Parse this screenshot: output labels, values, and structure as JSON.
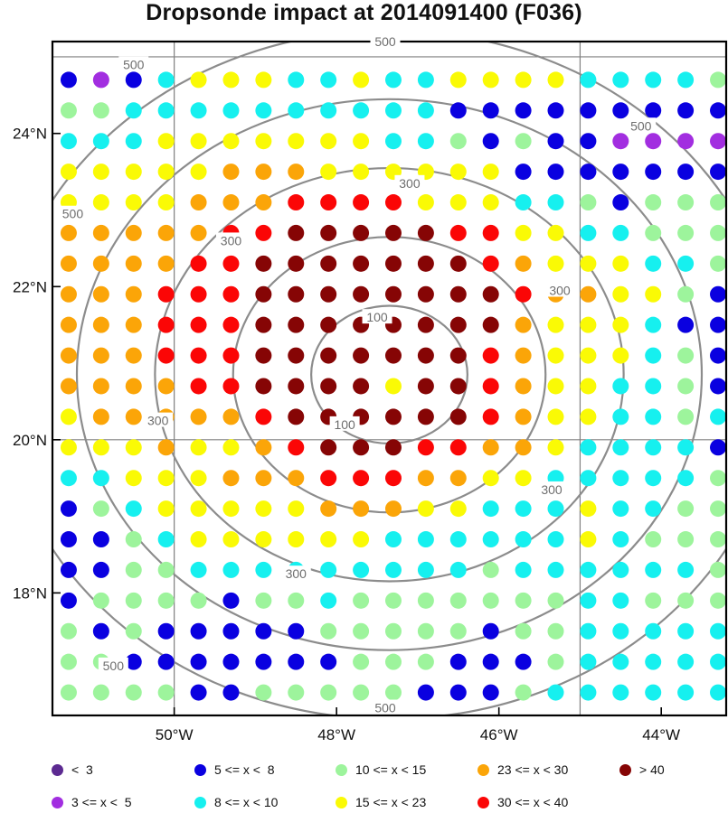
{
  "chart_data": {
    "type": "scatter",
    "title": "Dropsonde impact at 2014091400 (F036)",
    "x_range_lon": [
      -51.5,
      -43.2
    ],
    "y_range_lat": [
      16.4,
      25.2
    ],
    "x_ticks": [
      {
        "lon": -50,
        "label": "50°W"
      },
      {
        "lon": -48,
        "label": "48°W"
      },
      {
        "lon": -46,
        "label": "46°W"
      },
      {
        "lon": -44,
        "label": "44°W"
      }
    ],
    "y_ticks": [
      {
        "lat": 24,
        "label": "24°N"
      },
      {
        "lat": 22,
        "label": "22°N"
      },
      {
        "lat": 20,
        "label": "20°N"
      },
      {
        "lat": 18,
        "label": "18°N"
      }
    ],
    "grid_lines_lon": [
      -50,
      -45
    ],
    "grid_lines_lat": [
      25,
      20
    ],
    "grid": true,
    "point_lons": [
      -51.3,
      -50.9,
      -50.5,
      -50.1,
      -49.7,
      -49.3,
      -48.9,
      -48.5,
      -48.1,
      -47.7,
      -47.3,
      -46.9,
      -46.5,
      -46.1,
      -45.7,
      -45.3,
      -44.9,
      -44.5,
      -44.1,
      -43.7,
      -43.3
    ],
    "point_lats": [
      24.7,
      24.3,
      23.9,
      23.5,
      23.1,
      22.7,
      22.3,
      21.9,
      21.5,
      21.1,
      20.7,
      20.3,
      19.9,
      19.5,
      19.1,
      18.7,
      18.3,
      17.9,
      17.5,
      17.1,
      16.7
    ],
    "category_grid": [
      [
        2,
        1,
        2,
        3,
        5,
        5,
        5,
        3,
        3,
        5,
        3,
        3,
        5,
        5,
        5,
        5,
        3,
        3,
        3,
        3,
        4
      ],
      [
        4,
        4,
        3,
        3,
        3,
        3,
        3,
        3,
        3,
        3,
        3,
        3,
        2,
        2,
        2,
        2,
        2,
        2,
        2,
        2,
        2
      ],
      [
        3,
        3,
        3,
        5,
        5,
        5,
        5,
        5,
        5,
        5,
        3,
        3,
        4,
        2,
        4,
        2,
        2,
        1,
        1,
        1,
        1
      ],
      [
        5,
        5,
        5,
        5,
        5,
        6,
        6,
        6,
        5,
        5,
        5,
        5,
        5,
        5,
        2,
        2,
        2,
        2,
        2,
        2,
        2
      ],
      [
        5,
        5,
        5,
        5,
        6,
        6,
        6,
        7,
        7,
        7,
        7,
        5,
        5,
        5,
        3,
        3,
        4,
        2,
        4,
        4,
        4
      ],
      [
        6,
        6,
        6,
        6,
        6,
        7,
        7,
        8,
        8,
        8,
        8,
        8,
        7,
        7,
        5,
        5,
        3,
        3,
        4,
        4,
        4
      ],
      [
        6,
        6,
        6,
        6,
        7,
        7,
        8,
        8,
        8,
        8,
        8,
        8,
        8,
        7,
        6,
        5,
        5,
        5,
        3,
        3,
        4
      ],
      [
        6,
        6,
        6,
        7,
        7,
        7,
        8,
        8,
        8,
        8,
        8,
        8,
        8,
        8,
        7,
        6,
        6,
        5,
        5,
        4,
        2
      ],
      [
        6,
        6,
        6,
        7,
        7,
        7,
        8,
        8,
        8,
        8,
        8,
        8,
        8,
        8,
        6,
        5,
        5,
        5,
        3,
        2,
        2
      ],
      [
        6,
        6,
        6,
        7,
        7,
        7,
        8,
        8,
        8,
        8,
        8,
        8,
        8,
        7,
        6,
        5,
        5,
        5,
        3,
        4,
        2
      ],
      [
        6,
        6,
        6,
        6,
        7,
        7,
        8,
        8,
        8,
        8,
        5,
        8,
        8,
        7,
        6,
        5,
        5,
        3,
        3,
        4,
        2
      ],
      [
        5,
        6,
        6,
        6,
        6,
        6,
        7,
        8,
        8,
        8,
        8,
        8,
        8,
        7,
        6,
        5,
        5,
        3,
        3,
        4,
        3
      ],
      [
        5,
        5,
        5,
        6,
        5,
        5,
        6,
        7,
        8,
        8,
        8,
        7,
        7,
        6,
        6,
        5,
        3,
        3,
        3,
        3,
        2
      ],
      [
        3,
        3,
        5,
        5,
        5,
        6,
        6,
        6,
        7,
        7,
        7,
        6,
        6,
        5,
        5,
        3,
        3,
        3,
        3,
        3,
        4
      ],
      [
        2,
        4,
        3,
        5,
        5,
        5,
        5,
        5,
        6,
        6,
        6,
        5,
        5,
        3,
        3,
        3,
        5,
        3,
        3,
        4,
        4
      ],
      [
        2,
        2,
        4,
        3,
        5,
        5,
        5,
        5,
        5,
        5,
        3,
        3,
        3,
        3,
        3,
        3,
        5,
        3,
        4,
        4,
        4
      ],
      [
        2,
        2,
        4,
        4,
        3,
        3,
        3,
        3,
        3,
        3,
        3,
        3,
        3,
        4,
        3,
        3,
        3,
        3,
        3,
        3,
        4
      ],
      [
        2,
        4,
        4,
        4,
        4,
        2,
        4,
        4,
        3,
        4,
        4,
        4,
        4,
        4,
        4,
        4,
        3,
        3,
        4,
        4,
        4
      ],
      [
        4,
        2,
        4,
        2,
        2,
        2,
        2,
        2,
        4,
        4,
        4,
        4,
        4,
        2,
        4,
        4,
        3,
        3,
        3,
        3,
        3
      ],
      [
        4,
        4,
        2,
        2,
        2,
        2,
        2,
        2,
        2,
        4,
        4,
        4,
        2,
        2,
        2,
        4,
        3,
        3,
        3,
        3,
        3
      ],
      [
        4,
        4,
        4,
        4,
        2,
        2,
        4,
        4,
        4,
        4,
        4,
        2,
        2,
        2,
        4,
        3,
        3,
        3,
        3,
        3,
        3
      ]
    ],
    "contours": {
      "center": [
        -47.35,
        20.85
      ],
      "units": "km",
      "levels": [
        100,
        200,
        300,
        400,
        500
      ],
      "labels": [
        {
          "text": "100",
          "lon": -47.5,
          "lat": 21.6
        },
        {
          "text": "100",
          "lon": -47.9,
          "lat": 20.2
        },
        {
          "text": "300",
          "lon": -47.1,
          "lat": 23.35
        },
        {
          "text": "300",
          "lon": -49.3,
          "lat": 22.6
        },
        {
          "text": "300",
          "lon": -45.25,
          "lat": 21.95
        },
        {
          "text": "300",
          "lon": -50.2,
          "lat": 20.25
        },
        {
          "text": "300",
          "lon": -45.35,
          "lat": 19.35
        },
        {
          "text": "300",
          "lon": -48.5,
          "lat": 18.25
        },
        {
          "text": "500",
          "lon": -47.4,
          "lat": 25.2
        },
        {
          "text": "500",
          "lon": -50.5,
          "lat": 24.9
        },
        {
          "text": "500",
          "lon": -44.25,
          "lat": 24.1
        },
        {
          "text": "500",
          "lon": -51.25,
          "lat": 22.95
        },
        {
          "text": "500",
          "lon": -50.75,
          "lat": 17.05
        },
        {
          "text": "500",
          "lon": -47.4,
          "lat": 16.5
        }
      ]
    },
    "legend": {
      "placement": "bottom",
      "categories": [
        {
          "label": "<  3",
          "color": "#5c2a91"
        },
        {
          "label": "3 <= x <  5",
          "color": "#a22ee0"
        },
        {
          "label": "5 <= x <  8",
          "color": "#0a00e0"
        },
        {
          "label": "8 <= x < 10",
          "color": "#16f0ef"
        },
        {
          "label": "10 <= x < 15",
          "color": "#9df49c"
        },
        {
          "label": "15 <= x < 23",
          "color": "#fafa05"
        },
        {
          "label": "23 <= x < 30",
          "color": "#fba508"
        },
        {
          "label": "30 <= x < 40",
          "color": "#fb0606"
        },
        {
          "label": "> 40",
          "color": "#860505"
        }
      ]
    },
    "colors": {
      "contour": "#8c8c8c",
      "gridline": "#808080",
      "frame": "#000000"
    }
  }
}
